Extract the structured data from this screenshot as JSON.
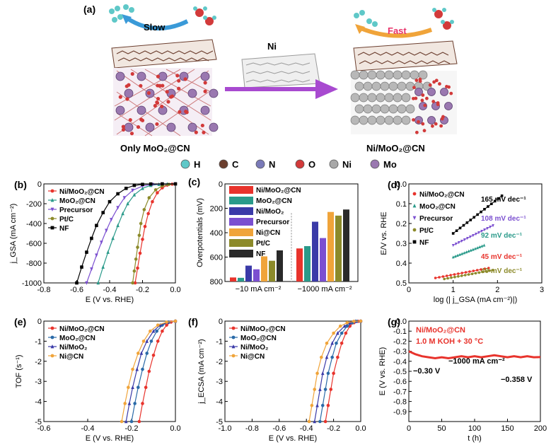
{
  "panel_a": {
    "label": "(a)",
    "slow": "Slow",
    "fast": "Fast",
    "ni": "Ni",
    "left_caption": "Only MoO₂@CN",
    "right_caption": "Ni/MoO₂@CN",
    "element_legend": [
      {
        "label": "H",
        "color": "#5fc8c8"
      },
      {
        "label": "C",
        "color": "#6b3e2e"
      },
      {
        "label": "N",
        "color": "#7a7ab8"
      },
      {
        "label": "O",
        "color": "#d23a3a"
      },
      {
        "label": "Ni",
        "color": "#a8a8a8"
      },
      {
        "label": "Mo",
        "color": "#9a78b0"
      }
    ]
  },
  "chart_data": [
    {
      "panel": "(b)",
      "type": "line",
      "xlabel": "E (V vs. RHE)",
      "ylabel": "j_GSA (mA cm⁻²)",
      "xlim": [
        -0.8,
        0.0
      ],
      "ylim": [
        -1000,
        0
      ],
      "xticks": [
        "-0.8",
        "-0.6",
        "-0.4",
        "-0.2",
        "0.0"
      ],
      "yticks": [
        "0",
        "-200",
        "-400",
        "-600",
        "-800",
        "-1000"
      ],
      "legend": "top-left",
      "series": [
        {
          "name": "Ni/MoO₂@CN",
          "color": "#e8332c",
          "marker": "circle",
          "x": [
            -0.245,
            -0.23,
            -0.215,
            -0.2,
            -0.185,
            -0.165,
            -0.14,
            -0.11,
            -0.08,
            -0.05,
            -0.02,
            0.0
          ],
          "y": [
            -1000,
            -850,
            -700,
            -560,
            -430,
            -300,
            -180,
            -90,
            -40,
            -12,
            -3,
            0
          ]
        },
        {
          "name": "MoO₂@CN",
          "color": "#2a9a8a",
          "marker": "triangle",
          "x": [
            -0.47,
            -0.44,
            -0.41,
            -0.38,
            -0.35,
            -0.32,
            -0.29,
            -0.25,
            -0.2,
            -0.15,
            -0.1,
            -0.05,
            0.0
          ],
          "y": [
            -1000,
            -840,
            -690,
            -550,
            -420,
            -300,
            -200,
            -110,
            -45,
            -15,
            -5,
            -1,
            0
          ]
        },
        {
          "name": "Precursor",
          "color": "#7b4fd0",
          "marker": "triangle-down",
          "x": [
            -0.54,
            -0.51,
            -0.48,
            -0.45,
            -0.42,
            -0.39,
            -0.35,
            -0.31,
            -0.26,
            -0.2,
            -0.14,
            -0.08,
            0.0
          ],
          "y": [
            -1000,
            -860,
            -720,
            -590,
            -470,
            -360,
            -240,
            -140,
            -65,
            -22,
            -6,
            -1,
            0
          ]
        },
        {
          "name": "Pt/C",
          "color": "#8c8a2a",
          "marker": "circle",
          "x": [
            -0.26,
            -0.25,
            -0.24,
            -0.23,
            -0.22,
            -0.21,
            -0.19,
            -0.16,
            -0.12,
            -0.08,
            -0.04,
            0.0
          ],
          "y": [
            -1000,
            -880,
            -760,
            -640,
            -520,
            -400,
            -260,
            -140,
            -60,
            -20,
            -5,
            0
          ]
        },
        {
          "name": "NF",
          "color": "#000000",
          "marker": "square",
          "x": [
            -0.6,
            -0.57,
            -0.54,
            -0.51,
            -0.48,
            -0.44,
            -0.4,
            -0.35,
            -0.3,
            -0.25,
            -0.2,
            -0.15,
            -0.08,
            0.0
          ],
          "y": [
            -1000,
            -840,
            -690,
            -550,
            -420,
            -290,
            -180,
            -100,
            -45,
            -15,
            -5,
            -1,
            0,
            0
          ]
        }
      ]
    },
    {
      "panel": "(c)",
      "type": "bar",
      "ylabel": "Overpotentials (mV)",
      "ylim": [
        0,
        800
      ],
      "yticks": [
        "0",
        "200",
        "400",
        "600",
        "800"
      ],
      "categories": [
        "−10 mA cm⁻²",
        "−1000 mA cm⁻²"
      ],
      "legend": "top-left",
      "series": [
        {
          "name": "Ni/MoO₂@CN",
          "color": "#e8332c",
          "values": [
            33,
            271
          ]
        },
        {
          "name": "MoO₂@CN",
          "color": "#2a9a8a",
          "values": [
            30,
            290
          ]
        },
        {
          "name": "Ni/MoO₂",
          "color": "#3a3aa8",
          "values": [
            130,
            490
          ]
        },
        {
          "name": "Precursor",
          "color": "#7b4fd0",
          "values": [
            100,
            356
          ]
        },
        {
          "name": "Ni@CN",
          "color": "#f0a43a",
          "values": [
            206,
            570
          ]
        },
        {
          "name": "Pt/C",
          "color": "#8c8a2a",
          "values": [
            170,
            540
          ]
        },
        {
          "name": "NF",
          "color": "#2a2a2a",
          "values": [
            255,
            590
          ]
        }
      ]
    },
    {
      "panel": "(d)",
      "type": "scatter",
      "xlabel": "log (| j_GSA (mA cm⁻²)|)",
      "ylabel": "E/V vs. RHE",
      "xlim": [
        0,
        3
      ],
      "ylim": [
        0.0,
        0.5
      ],
      "xticks": [
        "0",
        "1",
        "2",
        "3"
      ],
      "yticks": [
        "0.0",
        "0.1",
        "0.2",
        "0.3",
        "0.4",
        "0.5"
      ],
      "legend": "top-left",
      "tafel_labels": [
        "165 mV dec⁻¹",
        "108 mV dec⁻¹",
        "92 mV dec⁻¹",
        "45 mV dec⁻¹",
        "40 mV dec⁻¹"
      ],
      "series": [
        {
          "name": "Ni/MoO₂@CN",
          "color": "#e8332c",
          "marker": "circle",
          "x0": 0.6,
          "x1": 1.8,
          "y0": 0.025,
          "y1": 0.075
        },
        {
          "name": "MoO₂@CN",
          "color": "#2a9a8a",
          "marker": "triangle",
          "x0": 1.0,
          "x1": 1.7,
          "y0": 0.13,
          "y1": 0.19
        },
        {
          "name": "Precursor",
          "color": "#7b4fd0",
          "marker": "triangle-down",
          "x0": 1.0,
          "x1": 1.9,
          "y0": 0.19,
          "y1": 0.29
        },
        {
          "name": "Pt/C",
          "color": "#8c8a2a",
          "marker": "circle",
          "x0": 0.8,
          "x1": 1.9,
          "y0": 0.02,
          "y1": 0.065
        },
        {
          "name": "NF",
          "color": "#000000",
          "marker": "square",
          "x0": 1.0,
          "x1": 2.1,
          "y0": 0.25,
          "y1": 0.44
        }
      ]
    },
    {
      "panel": "(e)",
      "type": "line",
      "xlabel": "E (V vs. RHE)",
      "ylabel": "TOF (s⁻¹)",
      "xlim": [
        -0.6,
        0.0
      ],
      "ylim": [
        -5,
        0
      ],
      "xticks": [
        "-0.6",
        "-0.4",
        "-0.2",
        "0.0"
      ],
      "yticks": [
        "0",
        "-1",
        "-2",
        "-3",
        "-4",
        "-5"
      ],
      "legend": "top-left",
      "series": [
        {
          "name": "Ni/MoO₂@CN",
          "color": "#e8332c",
          "marker": "circle",
          "x": [
            -0.165,
            -0.15,
            -0.135,
            -0.12,
            -0.1,
            -0.08,
            -0.06,
            -0.04,
            -0.02,
            0.0
          ],
          "y": [
            -5,
            -4.1,
            -3.3,
            -2.5,
            -1.7,
            -1.0,
            -0.5,
            -0.2,
            -0.05,
            0
          ]
        },
        {
          "name": "MoO₂@CN",
          "color": "#2a6aa8",
          "marker": "circle",
          "x": [
            -0.2,
            -0.185,
            -0.17,
            -0.15,
            -0.13,
            -0.11,
            -0.085,
            -0.06,
            -0.03,
            0.0
          ],
          "y": [
            -5,
            -4.1,
            -3.3,
            -2.4,
            -1.6,
            -1.0,
            -0.5,
            -0.2,
            -0.05,
            0
          ]
        },
        {
          "name": "Ni/MoO₂",
          "color": "#3a3aa8",
          "marker": "triangle",
          "x": [
            -0.225,
            -0.21,
            -0.195,
            -0.175,
            -0.155,
            -0.13,
            -0.1,
            -0.07,
            -0.035,
            0.0
          ],
          "y": [
            -5,
            -4.1,
            -3.3,
            -2.4,
            -1.6,
            -1.0,
            -0.5,
            -0.2,
            -0.05,
            0
          ]
        },
        {
          "name": "Ni@CN",
          "color": "#f0a43a",
          "marker": "circle",
          "x": [
            -0.245,
            -0.23,
            -0.215,
            -0.195,
            -0.17,
            -0.145,
            -0.115,
            -0.08,
            -0.04,
            0.0
          ],
          "y": [
            -5,
            -4.1,
            -3.3,
            -2.4,
            -1.6,
            -1.0,
            -0.5,
            -0.2,
            -0.05,
            0
          ]
        }
      ]
    },
    {
      "panel": "(f)",
      "type": "line",
      "xlabel": "E (V vs. RHE)",
      "ylabel": "j_ECSA (mA cm⁻²)",
      "xlim": [
        -1.0,
        0.0
      ],
      "ylim": [
        -5,
        0
      ],
      "xticks": [
        "-1.0",
        "-0.8",
        "-0.6",
        "-0.4",
        "-0.2",
        "0.0"
      ],
      "yticks": [
        "0",
        "-1",
        "-2",
        "-3",
        "-4",
        "-5"
      ],
      "legend": "top-left",
      "series": [
        {
          "name": "Ni/MoO₂@CN",
          "color": "#e8332c",
          "marker": "circle",
          "x": [
            -0.26,
            -0.24,
            -0.22,
            -0.2,
            -0.17,
            -0.14,
            -0.11,
            -0.08,
            -0.05,
            -0.02,
            0.0
          ],
          "y": [
            -5,
            -4.2,
            -3.4,
            -2.6,
            -1.8,
            -1.1,
            -0.6,
            -0.25,
            -0.08,
            -0.01,
            0
          ]
        },
        {
          "name": "MoO₂@CN",
          "color": "#2a6aa8",
          "marker": "circle",
          "x": [
            -0.3,
            -0.28,
            -0.26,
            -0.24,
            -0.21,
            -0.18,
            -0.14,
            -0.1,
            -0.06,
            -0.03,
            0.0
          ],
          "y": [
            -5,
            -4.2,
            -3.4,
            -2.6,
            -1.8,
            -1.1,
            -0.6,
            -0.25,
            -0.08,
            -0.01,
            0
          ]
        },
        {
          "name": "Ni/MoO₂",
          "color": "#3a3aa8",
          "marker": "triangle",
          "x": [
            -0.34,
            -0.32,
            -0.3,
            -0.28,
            -0.25,
            -0.21,
            -0.17,
            -0.12,
            -0.08,
            -0.04,
            0.0
          ],
          "y": [
            -5,
            -4.2,
            -3.4,
            -2.6,
            -1.8,
            -1.1,
            -0.6,
            -0.25,
            -0.08,
            -0.01,
            0
          ]
        },
        {
          "name": "Ni@CN",
          "color": "#f0a43a",
          "marker": "circle",
          "x": [
            -0.38,
            -0.36,
            -0.34,
            -0.32,
            -0.29,
            -0.25,
            -0.2,
            -0.15,
            -0.1,
            -0.05,
            0.0
          ],
          "y": [
            -5,
            -4.2,
            -3.4,
            -2.6,
            -1.8,
            -1.1,
            -0.6,
            -0.25,
            -0.08,
            -0.01,
            0
          ]
        }
      ]
    },
    {
      "panel": "(g)",
      "type": "line",
      "xlabel": "t (h)",
      "ylabel": "E (V vs. RHE)",
      "xlim": [
        0,
        200
      ],
      "ylim": [
        -1.0,
        0.0
      ],
      "xticks": [
        "0",
        "50",
        "100",
        "150",
        "200"
      ],
      "yticks": [
        "0.0",
        "-0.1",
        "-0.2",
        "-0.3",
        "-0.4",
        "-0.5",
        "-0.6",
        "-0.7",
        "-0.8",
        "-0.9"
      ],
      "legend_title": "Ni/MoO₂@CN",
      "condition": "1.0 M KOH + 30 °C",
      "current_label": "−1000 mA cm⁻²",
      "start_label": "−0.30 V",
      "end_label": "−0.358 V",
      "series": [
        {
          "name": "Ni/MoO₂@CN",
          "color": "#e8332c",
          "x": [
            0,
            10,
            20,
            30,
            40,
            50,
            60,
            70,
            80,
            90,
            100,
            110,
            120,
            130,
            140,
            150,
            160,
            170,
            180,
            190,
            200
          ],
          "y": [
            -0.3,
            -0.33,
            -0.35,
            -0.36,
            -0.37,
            -0.36,
            -0.37,
            -0.36,
            -0.35,
            -0.36,
            -0.35,
            -0.36,
            -0.35,
            -0.34,
            -0.35,
            -0.36,
            -0.35,
            -0.36,
            -0.35,
            -0.36,
            -0.358
          ]
        }
      ]
    }
  ]
}
